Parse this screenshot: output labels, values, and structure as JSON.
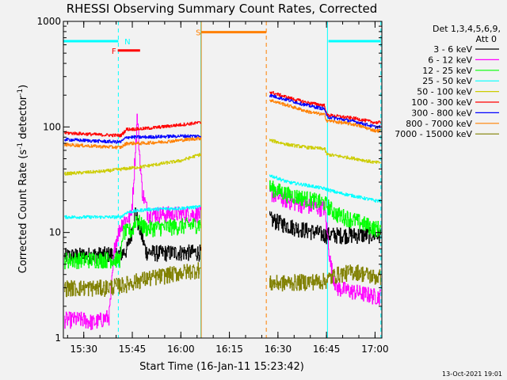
{
  "chart_data": {
    "type": "line",
    "title": "RHESSI Observing Summary Count Rates, Corrected",
    "xlabel": "Start Time (16-Jan-11 15:23:42)",
    "ylabel_main": "Corrected Count Rate (s",
    "ylabel_sup1": "-1",
    "ylabel_mid": " detector",
    "ylabel_sup2": "-1",
    "ylabel_end": ")",
    "yscale": "log",
    "ylim": [
      1,
      1000
    ],
    "xlim": [
      15.395,
      17.035
    ],
    "y_ticks": [
      {
        "value": 1,
        "label": "1"
      },
      {
        "value": 10,
        "label": "10"
      },
      {
        "value": 100,
        "label": "100"
      },
      {
        "value": 1000,
        "label": "1000"
      }
    ],
    "x_ticks": [
      {
        "value": 15.5,
        "label": "15:30"
      },
      {
        "value": 15.75,
        "label": "15:45"
      },
      {
        "value": 16.0,
        "label": "16:00"
      },
      {
        "value": 16.25,
        "label": "16:15"
      },
      {
        "value": 16.5,
        "label": "16:30"
      },
      {
        "value": 16.75,
        "label": "16:45"
      },
      {
        "value": 17.0,
        "label": "17:00"
      }
    ],
    "legend_header": [
      "Det 1,3,4,5,6,9,",
      "Att 0"
    ],
    "footer_date": "13-Oct-2021 19:01",
    "gaps": [
      [
        16.103,
        16.455
      ]
    ],
    "series": [
      {
        "name": "3 - 6 keV",
        "color": "#000000",
        "pts": [
          [
            15.4,
            6.0
          ],
          [
            15.69,
            6.3
          ],
          [
            15.72,
            6.8
          ],
          [
            15.745,
            10
          ],
          [
            15.765,
            16
          ],
          [
            15.78,
            12
          ],
          [
            15.82,
            6.6
          ],
          [
            15.88,
            6.4
          ],
          [
            16.0,
            6.5
          ],
          [
            16.1,
            6.5
          ],
          [
            16.455,
            13.5
          ],
          [
            16.53,
            12
          ],
          [
            16.6,
            11
          ],
          [
            16.7,
            10
          ],
          [
            16.74,
            9.5
          ]
        ]
      },
      {
        "name": "6 - 12 keV",
        "color": "#ff00ff",
        "pts": [
          [
            15.4,
            1.5
          ],
          [
            15.5,
            1.5
          ],
          [
            15.55,
            1.4
          ],
          [
            15.63,
            1.6
          ],
          [
            15.66,
            8
          ],
          [
            15.7,
            13
          ],
          [
            15.74,
            14
          ],
          [
            15.75,
            20
          ],
          [
            15.765,
            60
          ],
          [
            15.775,
            130
          ],
          [
            15.785,
            60
          ],
          [
            15.8,
            25
          ],
          [
            15.83,
            15
          ],
          [
            16.0,
            15
          ],
          [
            16.1,
            15
          ],
          [
            16.455,
            24
          ],
          [
            16.55,
            20
          ],
          [
            16.65,
            18
          ],
          [
            16.74,
            17
          ],
          [
            16.77,
            5
          ],
          [
            16.8,
            3
          ],
          [
            17.0,
            2.5
          ]
        ]
      },
      {
        "name": "12 - 25 keV",
        "color": "#00ff00",
        "pts": [
          [
            15.4,
            5.5
          ],
          [
            15.69,
            5.6
          ],
          [
            15.7,
            10
          ],
          [
            15.75,
            10.5
          ],
          [
            15.77,
            14
          ],
          [
            15.79,
            12
          ],
          [
            15.82,
            11
          ],
          [
            16.0,
            11.5
          ],
          [
            16.1,
            12
          ],
          [
            16.455,
            27
          ],
          [
            16.55,
            23
          ],
          [
            16.65,
            21
          ],
          [
            16.74,
            19
          ],
          [
            16.8,
            15
          ],
          [
            16.9,
            13
          ],
          [
            17.0,
            11
          ]
        ]
      },
      {
        "name": "25 - 50 keV",
        "color": "#00ffff",
        "pts": [
          [
            15.4,
            14
          ],
          [
            15.69,
            14
          ],
          [
            15.72,
            15.5
          ],
          [
            15.77,
            16
          ],
          [
            15.82,
            16.5
          ],
          [
            16.0,
            17
          ],
          [
            16.1,
            17.5
          ],
          [
            16.455,
            35
          ],
          [
            16.55,
            30
          ],
          [
            16.65,
            28
          ],
          [
            16.74,
            26
          ],
          [
            16.8,
            24
          ],
          [
            16.9,
            22
          ],
          [
            17.0,
            20
          ]
        ]
      },
      {
        "name": "50 - 100 keV",
        "color": "#cccc00",
        "pts": [
          [
            15.4,
            36
          ],
          [
            15.6,
            38
          ],
          [
            15.8,
            42
          ],
          [
            16.0,
            48
          ],
          [
            16.1,
            55
          ],
          [
            16.455,
            75
          ],
          [
            16.55,
            68
          ],
          [
            16.65,
            64
          ],
          [
            16.74,
            62
          ],
          [
            16.75,
            55
          ],
          [
            16.9,
            50
          ],
          [
            17.0,
            46
          ]
        ]
      },
      {
        "name": "100 - 300 keV",
        "color": "#ff0000",
        "pts": [
          [
            15.4,
            88
          ],
          [
            15.6,
            84
          ],
          [
            15.69,
            83
          ],
          [
            15.72,
            95
          ],
          [
            15.8,
            96
          ],
          [
            15.9,
            100
          ],
          [
            16.0,
            105
          ],
          [
            16.1,
            110
          ],
          [
            16.455,
            215
          ],
          [
            16.55,
            190
          ],
          [
            16.65,
            170
          ],
          [
            16.74,
            160
          ],
          [
            16.75,
            130
          ],
          [
            16.9,
            120
          ],
          [
            17.0,
            110
          ]
        ]
      },
      {
        "name": "300 - 800 keV",
        "color": "#0000ff",
        "pts": [
          [
            15.4,
            76
          ],
          [
            15.6,
            73
          ],
          [
            15.69,
            72
          ],
          [
            15.72,
            80
          ],
          [
            15.8,
            80
          ],
          [
            15.9,
            81
          ],
          [
            16.0,
            82
          ],
          [
            16.1,
            82
          ],
          [
            16.455,
            200
          ],
          [
            16.55,
            180
          ],
          [
            16.65,
            160
          ],
          [
            16.74,
            148
          ],
          [
            16.75,
            125
          ],
          [
            16.9,
            112
          ],
          [
            17.0,
            100
          ]
        ]
      },
      {
        "name": "800 - 7000 keV",
        "color": "#ff8000",
        "pts": [
          [
            15.4,
            68
          ],
          [
            15.6,
            65
          ],
          [
            15.69,
            64
          ],
          [
            15.72,
            70
          ],
          [
            15.8,
            70
          ],
          [
            15.9,
            72
          ],
          [
            16.0,
            75
          ],
          [
            16.1,
            78
          ],
          [
            16.455,
            180
          ],
          [
            16.55,
            160
          ],
          [
            16.65,
            140
          ],
          [
            16.74,
            130
          ],
          [
            16.75,
            115
          ],
          [
            16.9,
            105
          ],
          [
            17.0,
            92
          ]
        ]
      },
      {
        "name": "7000 - 15000 keV",
        "color": "#808000",
        "pts": [
          [
            15.4,
            3.0
          ],
          [
            15.5,
            3.0
          ],
          [
            15.6,
            3.0
          ],
          [
            15.7,
            3.2
          ],
          [
            15.8,
            3.6
          ],
          [
            16.0,
            4.2
          ],
          [
            16.1,
            4.5
          ],
          [
            16.455,
            3.3
          ],
          [
            16.6,
            3.4
          ],
          [
            16.74,
            3.5
          ],
          [
            16.8,
            4.0
          ],
          [
            16.9,
            4.3
          ],
          [
            17.0,
            3.8
          ]
        ]
      }
    ],
    "markers": [
      {
        "label": "F",
        "color": "#ff0000",
        "x1": 15.675,
        "x2": 15.79,
        "y": 530,
        "label_x": 15.655
      },
      {
        "label": "N",
        "color": "#00ffff",
        "x1": 15.395,
        "x2": 15.678,
        "y": 650,
        "label_x": 15.725
      },
      {
        "label": "S",
        "color": "#ff8000",
        "x1": 16.105,
        "x2": 16.44,
        "y": 790,
        "label_x": 16.09
      },
      {
        "label": "",
        "color": "#00ffff",
        "x1": 16.76,
        "x2": 17.03,
        "y": 650,
        "label_x": 16.76
      }
    ],
    "vlines": [
      {
        "x": 15.395,
        "color": "#00ffff",
        "style": "solid"
      },
      {
        "x": 15.678,
        "color": "#00ffff",
        "style": "dashed"
      },
      {
        "x": 16.103,
        "color": "#00ffff",
        "style": "solid"
      },
      {
        "x": 16.105,
        "color": "#ff8000",
        "style": "solid"
      },
      {
        "x": 16.44,
        "color": "#ff8000",
        "style": "dashed"
      },
      {
        "x": 16.755,
        "color": "#00ffff",
        "style": "solid"
      },
      {
        "x": 17.03,
        "color": "#00ffff",
        "style": "dashed"
      }
    ]
  }
}
